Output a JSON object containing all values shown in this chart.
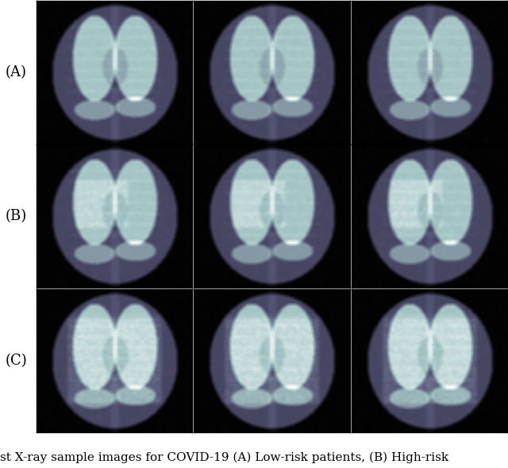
{
  "rows": 3,
  "cols": 3,
  "row_labels": [
    "(A)",
    "(B)",
    "(C)"
  ],
  "caption": "st X-ray sample images for COVID-19 (A) Low-risk patients, (B) High-risk",
  "caption_fontsize": 11,
  "label_fontsize": 13,
  "fig_width": 6.4,
  "fig_height": 5.89,
  "bg_color": "#ffffff",
  "label_color": "#000000",
  "caption_color": "#000000",
  "xray_cmap": "bone",
  "border_color": "#000000"
}
